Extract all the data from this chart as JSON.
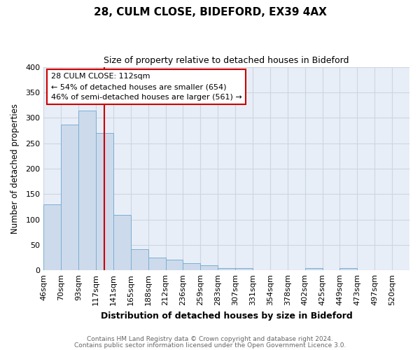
{
  "title": "28, CULM CLOSE, BIDEFORD, EX39 4AX",
  "subtitle": "Size of property relative to detached houses in Bideford",
  "xlabel": "Distribution of detached houses by size in Bideford",
  "ylabel": "Number of detached properties",
  "bin_labels": [
    "46sqm",
    "70sqm",
    "93sqm",
    "117sqm",
    "141sqm",
    "165sqm",
    "188sqm",
    "212sqm",
    "236sqm",
    "259sqm",
    "283sqm",
    "307sqm",
    "331sqm",
    "354sqm",
    "378sqm",
    "402sqm",
    "425sqm",
    "449sqm",
    "473sqm",
    "497sqm",
    "520sqm"
  ],
  "bar_heights": [
    130,
    286,
    314,
    270,
    109,
    41,
    25,
    21,
    14,
    10,
    5,
    5,
    0,
    0,
    0,
    5,
    0,
    5,
    0,
    0,
    0
  ],
  "bar_color": "#cddaeb",
  "bar_edge_color": "#7aafd4",
  "vline_x": 3.5,
  "vline_color": "#cc0000",
  "annotation_title": "28 CULM CLOSE: 112sqm",
  "annotation_line1": "← 54% of detached houses are smaller (654)",
  "annotation_line2": "46% of semi-detached houses are larger (561) →",
  "ylim": [
    0,
    400
  ],
  "yticks": [
    0,
    50,
    100,
    150,
    200,
    250,
    300,
    350,
    400
  ],
  "footer1": "Contains HM Land Registry data © Crown copyright and database right 2024.",
  "footer2": "Contains public sector information licensed under the Open Government Licence 3.0.",
  "background_color": "#ffffff",
  "grid_color": "#cdd5e0",
  "title_fontsize": 11,
  "subtitle_fontsize": 9,
  "xlabel_fontsize": 9,
  "ylabel_fontsize": 8.5,
  "tick_fontsize": 8,
  "annotation_fontsize": 8,
  "footer_fontsize": 6.5
}
